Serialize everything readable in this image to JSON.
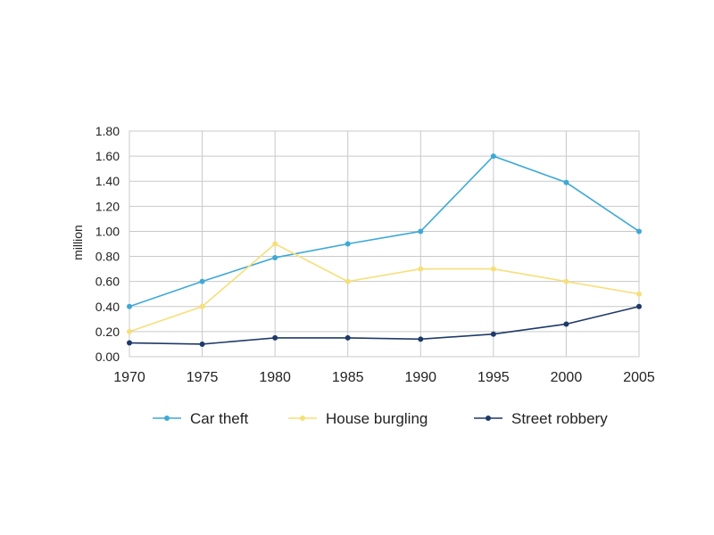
{
  "chart_data": {
    "type": "line",
    "x": [
      "1970",
      "1975",
      "1980",
      "1985",
      "1990",
      "1995",
      "2000",
      "2005"
    ],
    "ylabel": "million",
    "ylim": [
      0,
      1.8
    ],
    "yticks": [
      "0.00",
      "0.20",
      "0.40",
      "0.60",
      "0.80",
      "1.00",
      "1.20",
      "1.40",
      "1.60",
      "1.80"
    ],
    "grid": true,
    "legend_position": "bottom",
    "series": [
      {
        "name": "Car theft",
        "color": "#3fa9d6",
        "values": [
          0.4,
          0.6,
          0.79,
          0.9,
          1.0,
          1.6,
          1.39,
          1.0
        ]
      },
      {
        "name": "House burgling",
        "color": "#f6df7a",
        "values": [
          0.2,
          0.4,
          0.9,
          0.6,
          0.7,
          0.7,
          0.6,
          0.5
        ]
      },
      {
        "name": "Street robbery",
        "color": "#1f3a68",
        "values": [
          0.11,
          0.1,
          0.15,
          0.15,
          0.14,
          0.18,
          0.26,
          0.4
        ]
      }
    ]
  }
}
